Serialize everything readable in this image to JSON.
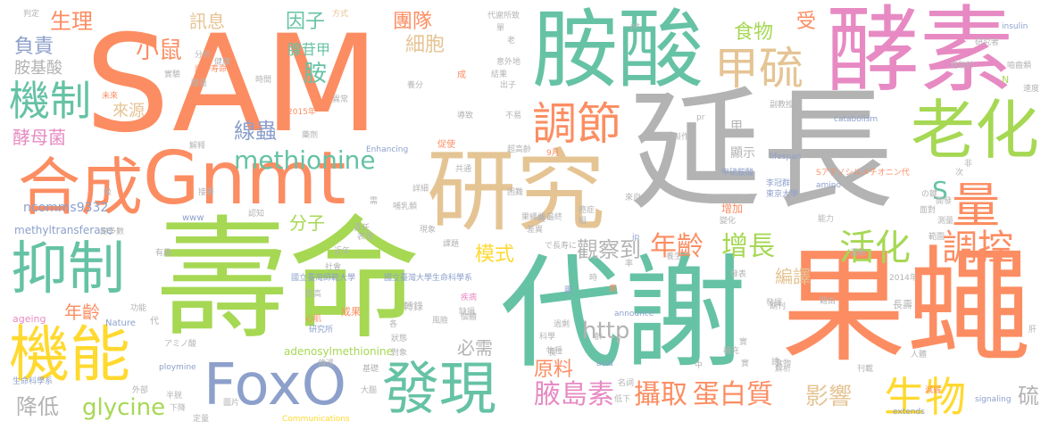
{
  "colors": {
    "orange": "#fc8d62",
    "teal": "#66c2a5",
    "gray": "#b3b3b3",
    "pink": "#e78ac3",
    "green": "#a6d854",
    "blue": "#8da0cb",
    "yellow": "#ffd92f",
    "tan": "#e5c494"
  },
  "words": [
    {
      "text": "SAM"
    },
    {
      "text": "延長"
    },
    {
      "text": "壽命"
    },
    {
      "text": "代謝"
    },
    {
      "text": "果蠅"
    },
    {
      "text": "胺酸"
    },
    {
      "text": "酵素"
    },
    {
      "text": "研究"
    },
    {
      "text": "合成"
    },
    {
      "text": "Gnmt"
    },
    {
      "text": "FoxO"
    },
    {
      "text": "機能"
    },
    {
      "text": "抑制"
    },
    {
      "text": "老化"
    },
    {
      "text": "甲硫"
    },
    {
      "text": "發現"
    },
    {
      "text": "機制"
    },
    {
      "text": "調節"
    },
    {
      "text": "量"
    },
    {
      "text": "調控"
    },
    {
      "text": "活化"
    },
    {
      "text": "生物"
    },
    {
      "text": "小鼠"
    },
    {
      "text": "methionine"
    },
    {
      "text": "年齡"
    },
    {
      "text": "增長"
    },
    {
      "text": "腋島素"
    },
    {
      "text": "攝取"
    },
    {
      "text": "蛋白質"
    },
    {
      "text": "glycine"
    },
    {
      "text": "觀察到"
    },
    {
      "text": "影響"
    },
    {
      "text": "http"
    },
    {
      "text": "模式"
    },
    {
      "text": "原料"
    },
    {
      "text": "線蟲"
    },
    {
      "text": "細胞"
    },
    {
      "text": "因子"
    },
    {
      "text": "團隊"
    },
    {
      "text": "生理"
    },
    {
      "text": "負責"
    },
    {
      "text": "訊息"
    },
    {
      "text": "食物"
    },
    {
      "text": "受"
    },
    {
      "text": "胺"
    },
    {
      "text": "腺苷甲"
    },
    {
      "text": "分子"
    },
    {
      "text": "必需"
    },
    {
      "text": "編譯"
    },
    {
      "text": "年齡"
    },
    {
      "text": "酵母菌"
    },
    {
      "text": "胺基酸"
    },
    {
      "text": "來源"
    },
    {
      "text": "S"
    },
    {
      "text": "硫"
    },
    {
      "text": "降低"
    },
    {
      "text": "adenosylmethionine"
    },
    {
      "text": "methyltransferase"
    },
    {
      "text": "ncomms9332"
    },
    {
      "text": "轉錄"
    },
    {
      "text": "顯示"
    },
    {
      "text": "甲"
    },
    {
      "text": "國立臺灣大學生命科學系"
    },
    {
      "text": "國立臺灣師範大學"
    },
    {
      "text": "Nature"
    },
    {
      "text": "Enhancing"
    },
    {
      "text": "lifespan"
    },
    {
      "text": "Sアデノシルメチオニン代"
    },
    {
      "text": "catabolism"
    },
    {
      "text": "甲硫胺酸"
    },
    {
      "text": "東京大學"
    },
    {
      "text": "李冠群"
    },
    {
      "text": "研究所"
    },
    {
      "text": "ploymine"
    },
    {
      "text": "Communications"
    },
    {
      "text": "ageing"
    },
    {
      "text": "insulin"
    },
    {
      "text": "signaling"
    },
    {
      "text": "extends"
    },
    {
      "text": "acid"
    },
    {
      "text": "amino"
    },
    {
      "text": "www"
    },
    {
      "text": "jp"
    },
    {
      "text": "jst"
    },
    {
      "text": "announce"
    },
    {
      "text": "2014年"
    },
    {
      "text": "2015年"
    },
    {
      "text": "代謝所致"
    },
    {
      "text": "生命科學系"
    },
    {
      "text": "アミノ酸"
    },
    {
      "text": "促使"
    },
    {
      "text": "共通"
    },
    {
      "text": "詳細"
    },
    {
      "text": "超高齡"
    },
    {
      "text": "成果"
    },
    {
      "text": "增加"
    },
    {
      "text": "社會"
    },
    {
      "text": "提高"
    },
    {
      "text": "實驗"
    },
    {
      "text": "功能"
    },
    {
      "text": "外部"
    },
    {
      "text": "期刊"
    },
    {
      "text": "藉由"
    },
    {
      "text": "認知"
    },
    {
      "text": "方式"
    },
    {
      "text": "判定"
    },
    {
      "text": "意外地"
    },
    {
      "text": "研究者"
    },
    {
      "text": "副教授"
    },
    {
      "text": "製作"
    },
    {
      "text": "長壽"
    },
    {
      "text": "運動"
    },
    {
      "text": "有助於"
    },
    {
      "text": "補充"
    },
    {
      "text": "不易"
    },
    {
      "text": "來自"
    },
    {
      "text": "結果"
    },
    {
      "text": "發表"
    },
    {
      "text": "解析"
    },
    {
      "text": "心肌"
    },
    {
      "text": "風險"
    },
    {
      "text": "缺損"
    },
    {
      "text": "疾病"
    },
    {
      "text": "個體"
    },
    {
      "text": "現象"
    },
    {
      "text": "差異"
    },
    {
      "text": "果蠅雌"
    },
    {
      "text": "組"
    },
    {
      "text": "人體"
    },
    {
      "text": "名詞"
    },
    {
      "text": "減弱"
    },
    {
      "text": "刊載"
    },
    {
      "text": "肝"
    },
    {
      "text": "面對"
    },
    {
      "text": "測量"
    },
    {
      "text": "範圍"
    },
    {
      "text": "食物"
    },
    {
      "text": "養生"
    },
    {
      "text": "謝多數"
    },
    {
      "text": "有趣"
    },
    {
      "text": "發揮"
    },
    {
      "text": "過剩"
    },
    {
      "text": "物種"
    },
    {
      "text": "科學"
    },
    {
      "text": "低下"
    },
    {
      "text": "下降"
    },
    {
      "text": "定量"
    },
    {
      "text": "大腦"
    },
    {
      "text": "基礎"
    },
    {
      "text": "傳遞"
    },
    {
      "text": "哺乳類"
    },
    {
      "text": "課題"
    },
    {
      "text": "表現"
    },
    {
      "text": "近年"
    },
    {
      "text": "健康"
    },
    {
      "text": "老"
    },
    {
      "text": "N"
    },
    {
      "text": "出子"
    },
    {
      "text": "養分"
    },
    {
      "text": "未來"
    },
    {
      "text": "解释"
    },
    {
      "text": "酸量"
    },
    {
      "text": "接著"
    },
    {
      "text": "分析"
    },
    {
      "text": "時間"
    },
    {
      "text": "圖片"
    },
    {
      "text": "半胱"
    },
    {
      "text": "代"
    },
    {
      "text": "變化"
    },
    {
      "text": "能力"
    },
    {
      "text": "癌症"
    },
    {
      "text": "對象"
    },
    {
      "text": "速度"
    },
    {
      "text": "嚙齒類"
    },
    {
      "text": "非"
    },
    {
      "text": "次"
    },
    {
      "text": "の鍵"
    },
    {
      "text": "開發"
    },
    {
      "text": "で長寿に"
    },
    {
      "text": "謝が寿命"
    },
    {
      "text": "成"
    },
    {
      "text": "單"
    },
    {
      "text": "中"
    },
    {
      "text": "實"
    },
    {
      "text": "誘"
    },
    {
      "text": "各"
    },
    {
      "text": "長"
    },
    {
      "text": "短"
    },
    {
      "text": "最終"
    },
    {
      "text": "困難"
    },
    {
      "text": "需"
    },
    {
      "text": "吸"
    },
    {
      "text": "責任"
    },
    {
      "text": "導致"
    },
    {
      "text": "狀態"
    },
    {
      "text": "9月"
    },
    {
      "text": "異常"
    },
    {
      "text": "藥劑"
    },
    {
      "text": "素"
    },
    {
      "text": "時"
    },
    {
      "text": "齡"
    },
    {
      "text": "率"
    },
    {
      "text": "界"
    },
    {
      "text": "實"
    },
    {
      "text": "團"
    },
    {
      "text": "pr"
    },
    {
      "text": "提示"
    }
  ]
}
